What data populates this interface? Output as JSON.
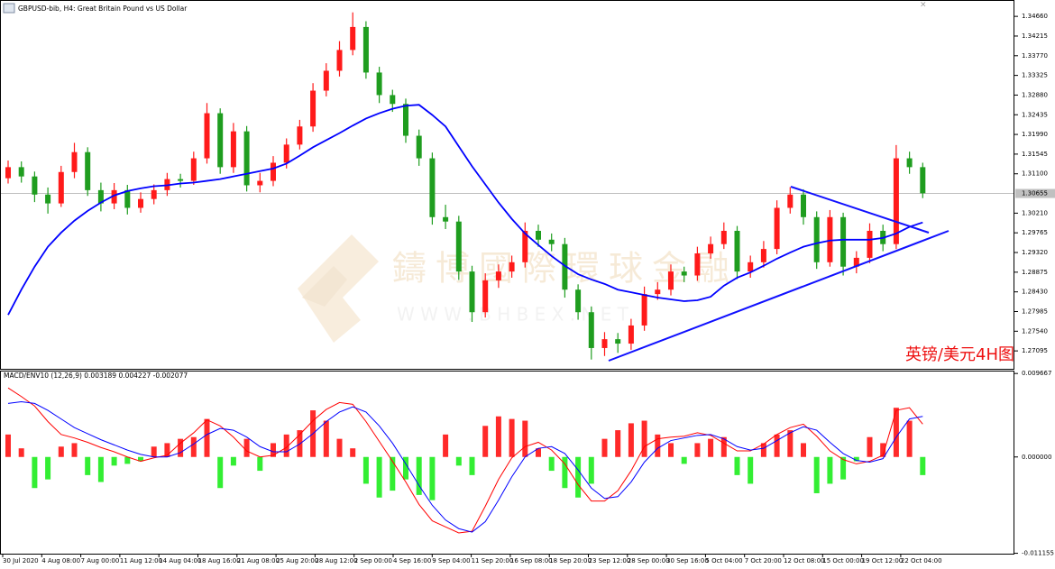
{
  "chart_data": [
    {
      "type": "candlestick",
      "title": "GBPUSD-bib, H4:  Great Britain Pound vs US Dollar",
      "annotation": "英镑/美元4H图",
      "watermark": "鑄博國際環球金融",
      "watermark_url": "W W W . B H B E X . N E T",
      "x_labels": [
        "30 Jul 2020",
        "4 Aug 08:00",
        "7 Aug 00:00",
        "11 Aug 12:00",
        "14 Aug 04:00",
        "18 Aug 16:00",
        "21 Aug 08:00",
        "25 Aug 20:00",
        "28 Aug 12:00",
        "2 Sep 00:00",
        "4 Sep 16:00",
        "9 Sep 04:00",
        "11 Sep 20:00",
        "16 Sep 08:00",
        "18 Sep 20:00",
        "23 Sep 12:00",
        "28 Sep 00:00",
        "30 Sep 16:00",
        "5 Oct 04:00",
        "7 Oct 20:00",
        "12 Oct 08:00",
        "15 Oct 00:00",
        "19 Oct 12:00",
        "22 Oct 04:00"
      ],
      "open": [
        1.31,
        1.3125,
        1.3104,
        1.3063,
        1.3043,
        1.3114,
        1.3159,
        1.3073,
        1.3043,
        1.3073,
        1.3033,
        1.3053,
        1.3073,
        1.3098,
        1.3094,
        1.3145,
        1.3247,
        1.3125,
        1.3206,
        1.3084,
        1.3094,
        1.3135,
        1.3176,
        1.3217,
        1.3298,
        1.3343,
        1.339,
        1.3442,
        1.3339,
        1.3288,
        1.3268,
        1.3196,
        1.3145,
        1.3012,
        1.3002,
        1.2889,
        1.2797,
        1.2869,
        1.2889,
        1.291,
        1.2981,
        1.2961,
        1.2951,
        1.2848,
        1.2797,
        1.2716,
        1.2736,
        1.2726,
        1.2767,
        1.2838,
        1.2848,
        1.2889,
        1.288,
        1.293,
        1.2951,
        1.2981,
        1.2889,
        1.291,
        1.294,
        1.3033,
        1.3063,
        1.3012,
        1.291,
        1.3012,
        1.29,
        1.292,
        1.2981,
        1.2951,
        1.3145,
        1.3125
      ],
      "high": [
        1.314,
        1.3138,
        1.3115,
        1.3079,
        1.3128,
        1.318,
        1.317,
        1.309,
        1.3089,
        1.3085,
        1.3068,
        1.3086,
        1.3112,
        1.311,
        1.316,
        1.327,
        1.3258,
        1.3225,
        1.3218,
        1.3112,
        1.315,
        1.319,
        1.3232,
        1.3315,
        1.336,
        1.341,
        1.3475,
        1.3455,
        1.3352,
        1.33,
        1.328,
        1.321,
        1.3158,
        1.304,
        1.3015,
        1.2902,
        1.2885,
        1.2905,
        1.2925,
        1.3,
        1.2995,
        1.2975,
        1.2965,
        1.286,
        1.281,
        1.2752,
        1.275,
        1.2782,
        1.2855,
        1.2865,
        1.2905,
        1.29,
        1.2945,
        1.2968,
        1.3,
        1.2992,
        1.2925,
        1.2958,
        1.305,
        1.308,
        1.3075,
        1.3025,
        1.3028,
        1.3022,
        1.2935,
        1.2998,
        1.2995,
        1.3175,
        1.316,
        1.3135
      ],
      "low": [
        1.3088,
        1.309,
        1.3046,
        1.302,
        1.3035,
        1.31,
        1.306,
        1.3025,
        1.303,
        1.3018,
        1.3022,
        1.3041,
        1.306,
        1.3079,
        1.3085,
        1.3133,
        1.311,
        1.3112,
        1.307,
        1.3068,
        1.3082,
        1.3122,
        1.3165,
        1.3205,
        1.3285,
        1.333,
        1.3378,
        1.3325,
        1.327,
        1.325,
        1.318,
        1.3128,
        1.2995,
        1.2985,
        1.287,
        1.2775,
        1.2785,
        1.2852,
        1.2875,
        1.2898,
        1.2945,
        1.2935,
        1.283,
        1.278,
        1.269,
        1.2698,
        1.2705,
        1.2712,
        1.2755,
        1.2825,
        1.2835,
        1.2865,
        1.2868,
        1.2918,
        1.294,
        1.2872,
        1.2875,
        1.2898,
        1.2928,
        1.302,
        1.2995,
        1.2895,
        1.29,
        1.288,
        1.2885,
        1.2908,
        1.2935,
        1.294,
        1.311,
        1.3055
      ],
      "close": [
        1.3125,
        1.3104,
        1.3063,
        1.3043,
        1.3114,
        1.3159,
        1.3073,
        1.3043,
        1.3073,
        1.3033,
        1.3053,
        1.3073,
        1.3098,
        1.3094,
        1.3145,
        1.3247,
        1.3125,
        1.3206,
        1.3084,
        1.3094,
        1.3135,
        1.3176,
        1.3217,
        1.3298,
        1.3343,
        1.339,
        1.3442,
        1.3339,
        1.3288,
        1.3268,
        1.3196,
        1.3145,
        1.3012,
        1.3002,
        1.2889,
        1.2797,
        1.2869,
        1.2889,
        1.291,
        1.2981,
        1.2961,
        1.2951,
        1.2848,
        1.2797,
        1.2716,
        1.2736,
        1.2726,
        1.2767,
        1.2838,
        1.2848,
        1.2889,
        1.288,
        1.293,
        1.2951,
        1.2981,
        1.2889,
        1.291,
        1.294,
        1.3033,
        1.3063,
        1.3012,
        1.291,
        1.3012,
        1.29,
        1.292,
        1.2981,
        1.2951,
        1.3145,
        1.3125,
        1.3066
      ],
      "up_color": "#ff1a1a",
      "down_color": "#1f9d1f",
      "series": [
        {
          "color": "#0000ff",
          "values": [
            1.2791,
            1.2848,
            1.29,
            1.2945,
            1.2977,
            1.3004,
            1.3026,
            1.3045,
            1.3061,
            1.3071,
            1.3077,
            1.3082,
            1.3084,
            1.3088,
            1.309,
            1.3094,
            1.3098,
            1.3104,
            1.311,
            1.3116,
            1.3122,
            1.3133,
            1.3151,
            1.317,
            1.3186,
            1.3202,
            1.3219,
            1.3235,
            1.3247,
            1.3257,
            1.3264,
            1.3266,
            1.3243,
            1.3217,
            1.3172,
            1.3127,
            1.3086,
            1.3045,
            1.3008,
            1.2975,
            1.2949,
            1.2924,
            1.2902,
            1.2883,
            1.2871,
            1.2861,
            1.2848,
            1.2842,
            1.2836,
            1.283,
            1.2826,
            1.2822,
            1.2824,
            1.2832,
            1.2857,
            1.2875,
            1.2887,
            1.2902,
            1.2918,
            1.2932,
            1.2945,
            1.2953,
            1.2959,
            1.2961,
            1.2961,
            1.2961,
            1.2965,
            1.2975,
            1.299,
            1.3
          ]
        }
      ],
      "current_price": 1.30655,
      "ylim": [
        1.2669,
        1.3503
      ],
      "yticks": [
        {
          "value": 1.3466,
          "label": "1.34660"
        },
        1.34215,
        {
          "value": 1.3377,
          "label": "1.33770"
        },
        1.33325,
        {
          "value": 1.3288,
          "label": "1.32880"
        },
        1.32435,
        {
          "value": 1.3199,
          "label": "1.31990"
        },
        1.31545,
        {
          "value": 1.311,
          "label": "1.31100"
        },
        {
          "value": 1.3021,
          "label": "1.30210"
        },
        1.29765,
        {
          "value": 1.2932,
          "label": "1.29320"
        },
        1.28875,
        {
          "value": 1.2843,
          "label": "1.28430"
        },
        1.27985,
        {
          "value": 1.2754,
          "label": "1.27540"
        },
        1.27095
      ]
    },
    {
      "type": "macd",
      "title": "MACD/ENV10 (12,26,9) 0.003189 0.004227 -0.002077",
      "histogram": {
        "color": "#ff2a2a",
        "negative_color": "#33ee33",
        "values": [
          0.0026,
          0.001,
          -0.0036,
          -0.0026,
          0.0012,
          0.0016,
          -0.0021,
          -0.0029,
          -0.001,
          -0.0008,
          -0.0005,
          0.0012,
          0.0016,
          0.0021,
          0.0023,
          0.0044,
          -0.0036,
          -0.001,
          0.0021,
          -0.0016,
          0.0016,
          0.0026,
          0.0031,
          0.0054,
          0.0042,
          0.0021,
          0.001,
          -0.0031,
          -0.0047,
          -0.0039,
          -0.0026,
          -0.0044,
          -0.005,
          0.0026,
          -0.001,
          -0.0021,
          0.0036,
          0.0047,
          0.0044,
          0.0042,
          0.001,
          -0.0016,
          -0.0036,
          -0.0047,
          -0.0031,
          0.0021,
          0.0031,
          0.0039,
          0.0042,
          0.0026,
          0.0016,
          -0.0008,
          0.0016,
          0.0021,
          0.0023,
          -0.0021,
          -0.0031,
          0.0016,
          0.0026,
          0.0031,
          0.0016,
          -0.0042,
          -0.0031,
          -0.0026,
          -0.0005,
          0.0023,
          0.0016,
          0.0057,
          0.0042,
          -0.0021
        ]
      },
      "series": [
        {
          "color": "#ff0000",
          "values": [
            0.008,
            0.007,
            0.0059,
            0.0041,
            0.0026,
            0.0022,
            0.0017,
            0.0011,
            0.0006,
            0.0,
            -0.0005,
            -0.0001,
            0.0002,
            0.0016,
            0.0028,
            0.0043,
            0.0036,
            0.0023,
            0.0007,
            0.0,
            0.0002,
            0.0011,
            0.0026,
            0.0042,
            0.0055,
            0.0063,
            0.0061,
            0.0041,
            0.0018,
            -0.0005,
            -0.0029,
            -0.0055,
            -0.0074,
            -0.0081,
            -0.0088,
            -0.0086,
            -0.0057,
            -0.0026,
            -0.0001,
            0.0012,
            0.0017,
            0.0008,
            -0.0008,
            -0.0032,
            -0.0051,
            -0.0051,
            -0.0039,
            -0.0016,
            0.0012,
            0.0021,
            0.0023,
            0.0024,
            0.0028,
            0.0025,
            0.0016,
            0.0007,
            0.0007,
            0.0015,
            0.0026,
            0.0034,
            0.0038,
            0.0024,
            0.0007,
            -0.0003,
            -0.0008,
            -0.0005,
            0.0002,
            0.0054,
            0.0057,
            0.0038
          ]
        },
        {
          "color": "#0000ff",
          "values": [
            0.0062,
            0.0064,
            0.0062,
            0.0054,
            0.0044,
            0.0034,
            0.0027,
            0.002,
            0.0014,
            0.0008,
            0.0003,
            0.0,
            0.0,
            0.0005,
            0.0015,
            0.0026,
            0.0033,
            0.0031,
            0.0023,
            0.0012,
            0.0006,
            0.0006,
            0.0015,
            0.0027,
            0.0041,
            0.0052,
            0.0058,
            0.0052,
            0.0036,
            0.0016,
            -0.0008,
            -0.0033,
            -0.0056,
            -0.0073,
            -0.0083,
            -0.0087,
            -0.0075,
            -0.005,
            -0.0023,
            0.0,
            0.001,
            0.0012,
            0.0004,
            -0.0015,
            -0.0036,
            -0.0048,
            -0.0046,
            -0.0029,
            -0.0006,
            0.001,
            0.0019,
            0.0022,
            0.0025,
            0.0026,
            0.0021,
            0.0012,
            0.0008,
            0.001,
            0.0019,
            0.0028,
            0.0035,
            0.0031,
            0.0017,
            0.0004,
            -0.0004,
            -0.0006,
            -0.0002,
            0.0023,
            0.0044,
            0.0047
          ]
        }
      ],
      "ylim": [
        -0.0112,
        0.01
      ],
      "yticks": [
        0.009667,
        {
          "value": 0,
          "label": "0.000000"
        },
        -0.011155
      ]
    }
  ]
}
